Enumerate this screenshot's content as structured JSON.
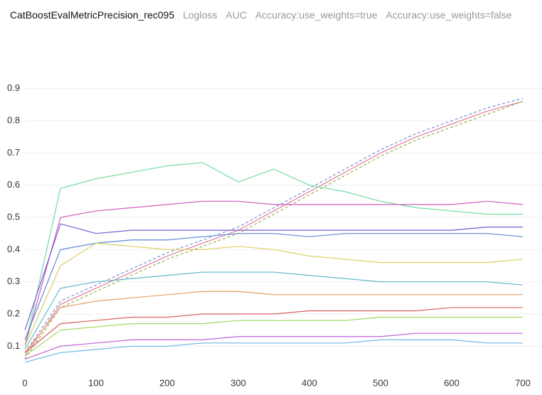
{
  "tabs": [
    "CatBoostEvalMetricPrecision_rec095",
    "Logloss",
    "AUC",
    "Accuracy:use_weights=true",
    "Accuracy:use_weights=false"
  ],
  "active_tab": 0,
  "chart_data": {
    "type": "line",
    "x": [
      0,
      50,
      100,
      150,
      200,
      250,
      300,
      350,
      400,
      450,
      500,
      550,
      600,
      650,
      700
    ],
    "xlim": [
      0,
      700
    ],
    "xticks": [
      0,
      100,
      200,
      300,
      400,
      500,
      600,
      700
    ],
    "ylim": [
      0.05,
      0.95
    ],
    "yticks": [
      0.1,
      0.2,
      0.3,
      0.4,
      0.5,
      0.6,
      0.7,
      0.8,
      0.9
    ],
    "grid": true,
    "series": [
      {
        "color": "#e07aa0",
        "dashed": false,
        "values": [
          0.07,
          0.23,
          0.28,
          0.33,
          0.38,
          0.42,
          0.46,
          0.52,
          0.58,
          0.64,
          0.7,
          0.75,
          0.79,
          0.83,
          0.86
        ]
      },
      {
        "color": "#9ab04a",
        "dashed": true,
        "values": [
          0.06,
          0.22,
          0.27,
          0.32,
          0.37,
          0.41,
          0.45,
          0.51,
          0.57,
          0.63,
          0.69,
          0.74,
          0.78,
          0.82,
          0.86
        ]
      },
      {
        "color": "#7a8fd8",
        "dashed": true,
        "values": [
          0.08,
          0.24,
          0.29,
          0.34,
          0.39,
          0.43,
          0.47,
          0.53,
          0.59,
          0.65,
          0.71,
          0.76,
          0.8,
          0.84,
          0.87
        ]
      },
      {
        "color": "#6fdca0",
        "dashed": false,
        "values": [
          0.1,
          0.59,
          0.62,
          0.64,
          0.66,
          0.67,
          0.61,
          0.65,
          0.6,
          0.58,
          0.55,
          0.53,
          0.52,
          0.51,
          0.51
        ]
      },
      {
        "color": "#d45ac0",
        "dashed": false,
        "values": [
          0.1,
          0.5,
          0.52,
          0.53,
          0.54,
          0.55,
          0.55,
          0.54,
          0.54,
          0.54,
          0.54,
          0.54,
          0.54,
          0.55,
          0.54
        ]
      },
      {
        "color": "#7a5ad0",
        "dashed": false,
        "values": [
          0.15,
          0.48,
          0.45,
          0.46,
          0.46,
          0.46,
          0.46,
          0.46,
          0.46,
          0.46,
          0.46,
          0.46,
          0.46,
          0.47,
          0.47
        ]
      },
      {
        "color": "#5a8ad8",
        "dashed": false,
        "values": [
          0.12,
          0.4,
          0.42,
          0.43,
          0.43,
          0.44,
          0.45,
          0.45,
          0.44,
          0.45,
          0.45,
          0.45,
          0.45,
          0.45,
          0.44
        ]
      },
      {
        "color": "#d8d060",
        "dashed": false,
        "values": [
          0.1,
          0.35,
          0.42,
          0.41,
          0.4,
          0.4,
          0.41,
          0.4,
          0.38,
          0.37,
          0.36,
          0.36,
          0.36,
          0.36,
          0.37
        ]
      },
      {
        "color": "#5ab8c8",
        "dashed": false,
        "values": [
          0.09,
          0.28,
          0.3,
          0.31,
          0.32,
          0.33,
          0.33,
          0.33,
          0.32,
          0.31,
          0.3,
          0.3,
          0.3,
          0.3,
          0.29
        ]
      },
      {
        "color": "#e0a060",
        "dashed": false,
        "values": [
          0.08,
          0.22,
          0.24,
          0.25,
          0.26,
          0.27,
          0.27,
          0.26,
          0.26,
          0.26,
          0.26,
          0.26,
          0.26,
          0.26,
          0.26
        ]
      },
      {
        "color": "#d86060",
        "dashed": false,
        "values": [
          0.08,
          0.17,
          0.18,
          0.19,
          0.19,
          0.2,
          0.2,
          0.2,
          0.21,
          0.21,
          0.21,
          0.21,
          0.22,
          0.22,
          0.22
        ]
      },
      {
        "color": "#a0d860",
        "dashed": false,
        "values": [
          0.07,
          0.15,
          0.16,
          0.17,
          0.17,
          0.17,
          0.18,
          0.18,
          0.18,
          0.18,
          0.19,
          0.19,
          0.19,
          0.19,
          0.19
        ]
      },
      {
        "color": "#c060d8",
        "dashed": false,
        "values": [
          0.06,
          0.1,
          0.11,
          0.12,
          0.12,
          0.12,
          0.13,
          0.13,
          0.13,
          0.13,
          0.13,
          0.14,
          0.14,
          0.14,
          0.14
        ]
      },
      {
        "color": "#70b8e8",
        "dashed": false,
        "values": [
          0.05,
          0.08,
          0.09,
          0.1,
          0.1,
          0.11,
          0.11,
          0.11,
          0.11,
          0.11,
          0.12,
          0.12,
          0.12,
          0.11,
          0.11
        ]
      }
    ]
  }
}
